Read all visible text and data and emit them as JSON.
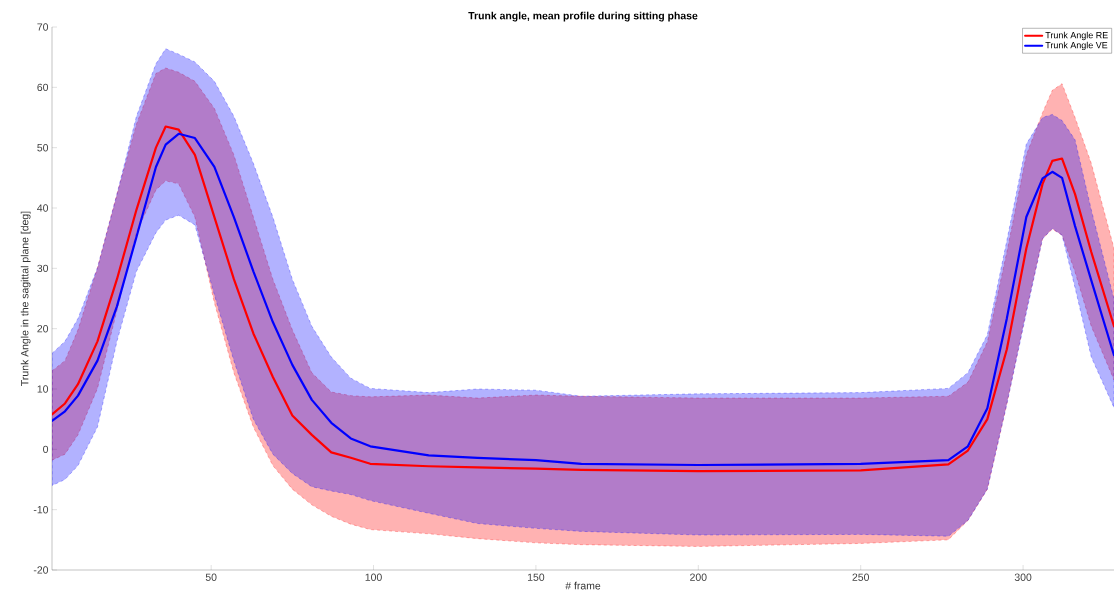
{
  "chart_data": {
    "type": "line",
    "title": "Trunk angle, mean profile during sitting phase",
    "xlabel": "# frame",
    "ylabel": "Trunk Angle in the sagittal plane [deg]",
    "xlim": [
      1,
      328
    ],
    "ylim": [
      -20,
      70
    ],
    "xticks": [
      50,
      100,
      150,
      200,
      250,
      300
    ],
    "yticks": [
      -20,
      -10,
      0,
      10,
      20,
      30,
      40,
      50,
      60,
      70
    ],
    "legend": "top right",
    "grid": false,
    "series": [
      {
        "name": "Trunk Angle RE",
        "color": "#ff0000",
        "x": [
          1,
          5,
          9,
          15,
          21,
          27,
          33,
          36,
          40,
          45,
          51,
          57,
          63,
          69,
          75,
          81,
          87,
          93,
          99,
          117,
          132,
          150,
          164,
          200,
          250,
          277,
          283,
          289,
          295,
          301,
          306,
          309,
          312,
          316,
          321,
          328
        ],
        "values": [
          5.8,
          7.6,
          10.8,
          17.9,
          28.2,
          39.7,
          50,
          53.5,
          53,
          48.8,
          38.5,
          28.2,
          19.2,
          12,
          5.6,
          2.4,
          -0.5,
          -1.4,
          -2.4,
          -2.8,
          -3,
          -3.2,
          -3.4,
          -3.6,
          -3.5,
          -2.5,
          -0.2,
          5,
          16.6,
          33.3,
          44,
          47.8,
          48.2,
          42.3,
          32.7,
          20.4
        ],
        "lower": [
          -1.8,
          -0.8,
          2.4,
          10.1,
          23,
          35.9,
          43,
          44.5,
          44,
          38.5,
          24.3,
          12.7,
          3.7,
          -2.7,
          -6.6,
          -9.2,
          -11.1,
          -12.4,
          -13.3,
          -14,
          -14.8,
          -15.5,
          -15.8,
          -16.1,
          -15.6,
          -15,
          -11.8,
          -6.6,
          7.5,
          23,
          34.9,
          36.5,
          35.5,
          29.4,
          20.4,
          11.5
        ],
        "upper": [
          13,
          14.7,
          19.8,
          30.1,
          42.3,
          53.9,
          62.3,
          63.2,
          62.5,
          61,
          56.5,
          48.8,
          38.5,
          28.2,
          19.8,
          12.7,
          9.5,
          8.9,
          8.7,
          9,
          8.5,
          9,
          8.8,
          8.5,
          8.5,
          8.8,
          11.1,
          17.8,
          32.7,
          48.8,
          55.8,
          59.5,
          60.6,
          55,
          47.4,
          33.3
        ]
      },
      {
        "name": "Trunk Angle VE",
        "color": "#0000ff",
        "x": [
          1,
          5,
          9,
          15,
          21,
          27,
          33,
          36,
          40,
          45,
          51,
          57,
          63,
          69,
          75,
          81,
          87,
          93,
          99,
          117,
          132,
          150,
          164,
          200,
          250,
          277,
          283,
          289,
          295,
          301,
          306,
          309,
          312,
          316,
          321,
          328
        ],
        "values": [
          4.7,
          6.3,
          8.9,
          14.7,
          23.7,
          35.2,
          46.8,
          50.5,
          52.3,
          51.6,
          46.8,
          38.5,
          29.5,
          21.1,
          14,
          8.2,
          4.4,
          1.8,
          0.5,
          -1,
          -1.4,
          -1.8,
          -2.4,
          -2.6,
          -2.4,
          -1.8,
          0.5,
          6.8,
          21.7,
          38.5,
          44.9,
          46,
          45,
          37,
          28,
          15.6
        ],
        "lower": [
          -6,
          -5,
          -2.7,
          3.7,
          17.9,
          29.5,
          35.9,
          38,
          38.8,
          37.2,
          25.6,
          14.7,
          5,
          -0.8,
          -4,
          -6.2,
          -6.9,
          -7.5,
          -8.5,
          -10.6,
          -12.3,
          -13.1,
          -13.6,
          -14.2,
          -14.1,
          -14.4,
          -11.8,
          -6.6,
          7.5,
          22.6,
          34.9,
          36.6,
          35.5,
          26.8,
          15.3,
          6.9
        ],
        "upper": [
          15.9,
          17.9,
          21.7,
          30.1,
          42.3,
          55.2,
          63.9,
          66.4,
          65.5,
          64.2,
          61,
          55.2,
          47.4,
          38.5,
          28.2,
          20.4,
          15.3,
          11.8,
          10.1,
          9.4,
          10,
          9.8,
          8.8,
          9.2,
          9.4,
          10.1,
          12.7,
          19,
          34.6,
          50.6,
          55,
          55.5,
          54.5,
          51.3,
          39.7,
          24.9
        ]
      }
    ]
  }
}
